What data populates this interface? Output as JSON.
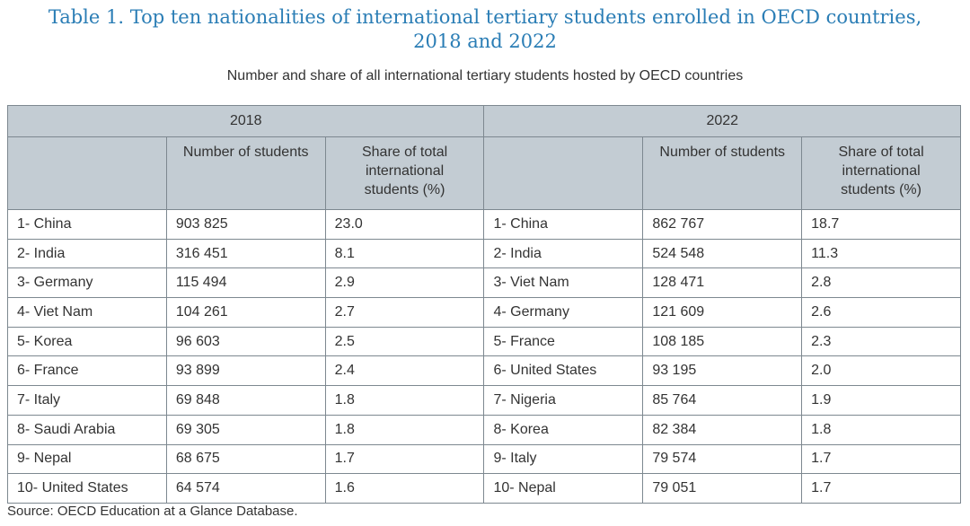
{
  "title": "Table 1. Top ten nationalities of international tertiary students enrolled in OECD countries, 2018 and 2022",
  "title_lines": [
    "Table 1. Top ten nationalities of international tertiary students enrolled in OECD countries,",
    "2018 and 2022"
  ],
  "subtitle": "Number and share of all international tertiary students hosted by OECD countries",
  "headers": {
    "year_2018": "2018",
    "year_2022": "2022",
    "number_col": "Number of students",
    "share_col": "Share of total international students (%)"
  },
  "rows_2018": [
    {
      "country": "1- China",
      "number": "903 825",
      "share": "23.0"
    },
    {
      "country": "2- India",
      "number": "316 451",
      "share": "8.1"
    },
    {
      "country": "3- Germany",
      "number": "115 494",
      "share": "2.9"
    },
    {
      "country": "4- Viet Nam",
      "number": "104 261",
      "share": "2.7"
    },
    {
      "country": "5- Korea",
      "number": "96 603",
      "share": "2.5"
    },
    {
      "country": "6- France",
      "number": "93 899",
      "share": "2.4"
    },
    {
      "country": "7- Italy",
      "number": "69 848",
      "share": "1.8"
    },
    {
      "country": "8- Saudi Arabia",
      "number": "69 305",
      "share": "1.8"
    },
    {
      "country": "9- Nepal",
      "number": "68 675",
      "share": "1.7"
    },
    {
      "country": "10- United States",
      "number": "64 574",
      "share": "1.6"
    }
  ],
  "rows_2022": [
    {
      "country": "1- China",
      "number": "862 767",
      "share": "18.7"
    },
    {
      "country": "2- India",
      "number": "524 548",
      "share": "11.3"
    },
    {
      "country": "3- Viet Nam",
      "number": "128 471",
      "share": "2.8"
    },
    {
      "country": "4- Germany",
      "number": "121 609",
      "share": "2.6"
    },
    {
      "country": "5- France",
      "number": "108 185",
      "share": "2.3"
    },
    {
      "country": "6- United States",
      "number": "93 195",
      "share": "2.0"
    },
    {
      "country": "7- Nigeria",
      "number": "85 764",
      "share": "1.9"
    },
    {
      "country": "8- Korea",
      "number": "82 384",
      "share": "1.8"
    },
    {
      "country": "9- Italy",
      "number": "79 574",
      "share": "1.7"
    },
    {
      "country": "10- Nepal",
      "number": "79 051",
      "share": "1.7"
    }
  ],
  "source": "Source: OECD Education at a Glance Database."
}
